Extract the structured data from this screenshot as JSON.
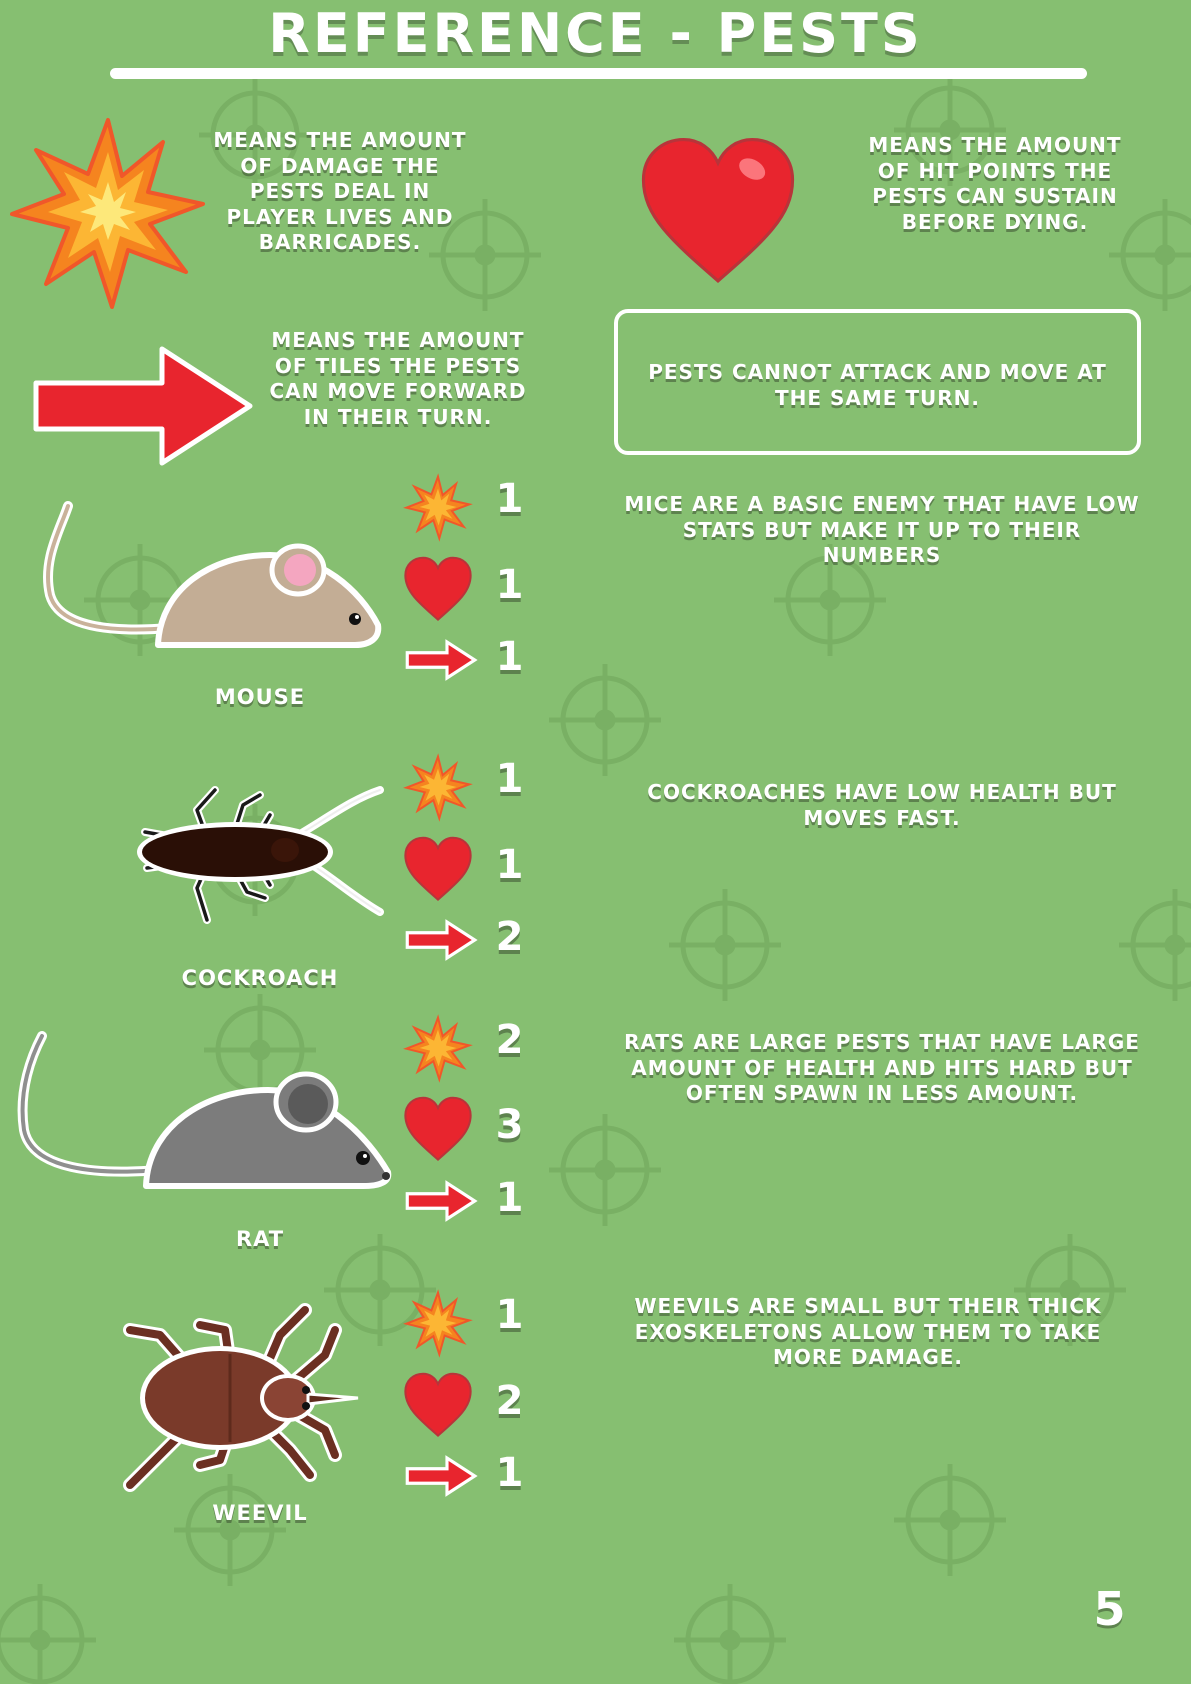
{
  "title": "REFERENCE - PESTS",
  "legend": {
    "damage": "MEANS THE AMOUNT OF DAMAGE THE PESTS DEAL IN PLAYER LIVES AND BARRICADES.",
    "health": "MEANS THE AMOUNT OF HIT POINTS THE PESTS CAN SUSTAIN BEFORE DYING.",
    "movement": "MEANS THE AMOUNT OF TILES THE PESTS CAN MOVE FORWARD IN THEIR TURN.",
    "note": "PESTS CANNOT ATTACK AND MOVE AT THE SAME TURN."
  },
  "pests": [
    {
      "name": "MOUSE",
      "damage": "1",
      "health": "1",
      "movement": "1",
      "description": "MICE ARE A BASIC ENEMY THAT HAVE LOW STATS BUT MAKE IT UP TO THEIR NUMBERS"
    },
    {
      "name": "COCKROACH",
      "damage": "1",
      "health": "1",
      "movement": "2",
      "description": "COCKROACHES HAVE LOW HEALTH BUT MOVES FAST."
    },
    {
      "name": "RAT",
      "damage": "2",
      "health": "3",
      "movement": "1",
      "description": "RATS ARE LARGE PESTS THAT HAVE LARGE AMOUNT OF HEALTH AND HITS HARD BUT OFTEN SPAWN IN LESS AMOUNT."
    },
    {
      "name": "WEEVIL",
      "damage": "1",
      "health": "2",
      "movement": "1",
      "description": "WEEVILS ARE SMALL BUT THEIR THICK EXOSKELETONS ALLOW THEM TO TAKE MORE DAMAGE."
    }
  ],
  "page_number": "5",
  "colors": {
    "background": "#86bf71",
    "heart": "#e8252e",
    "burst": "#f5841f",
    "arrow": "#e8252e"
  }
}
